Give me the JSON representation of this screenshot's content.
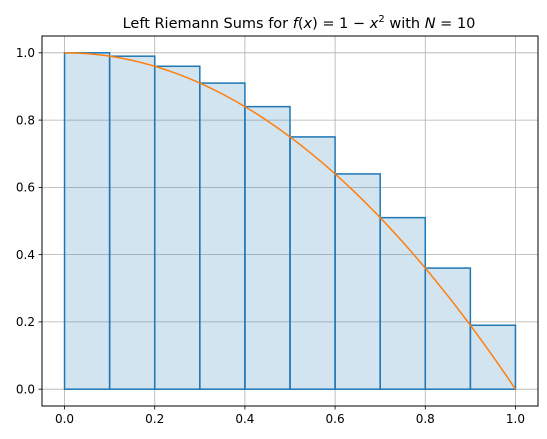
{
  "chart_data": {
    "type": "bar",
    "title": {
      "prefix": "Left Riemann Sums for ",
      "f": "f",
      "open": "(",
      "x": "x",
      "close": ")",
      "eq1": " = 1 − ",
      "x2": "x",
      "sup": "2",
      "with": " with ",
      "N": "N",
      "eq2": " = 10"
    },
    "xlim": [
      -0.05,
      1.05
    ],
    "ylim": [
      -0.05,
      1.05
    ],
    "grid": true,
    "x_ticks": [
      "0.0",
      "0.2",
      "0.4",
      "0.6",
      "0.8",
      "1.0"
    ],
    "y_ticks": [
      "0.0",
      "0.2",
      "0.4",
      "0.6",
      "0.8",
      "1.0"
    ],
    "rectangles": {
      "left_edges": [
        0.0,
        0.1,
        0.2,
        0.3,
        0.4,
        0.5,
        0.6,
        0.7,
        0.8,
        0.9
      ],
      "width": 0.1,
      "heights": [
        1.0,
        0.99,
        0.96,
        0.91,
        0.84,
        0.75,
        0.64,
        0.51,
        0.36,
        0.19
      ],
      "fill": "#1f77b4",
      "fill_opacity": 0.2,
      "edge_color": "#1f77b4"
    },
    "curve": {
      "x_start": 0.0,
      "x_end": 1.0,
      "color": "#ff7f0e"
    }
  }
}
